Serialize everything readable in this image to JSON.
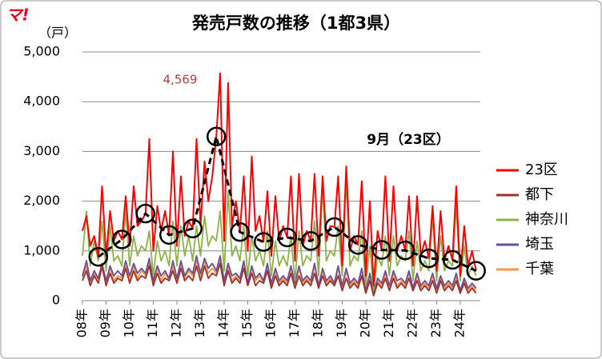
{
  "chart_data": {
    "type": "line",
    "logo": "マ!",
    "title": "発売戸数の推移（1都3県）",
    "y_label": "（戸）",
    "annotation": "4,569",
    "xlim": [
      2008,
      2024.85
    ],
    "ylim": [
      0,
      5000
    ],
    "yticks": [
      0,
      {
        "value": 1000,
        "label": "1,000"
      },
      {
        "value": 2000,
        "label": "2,000"
      },
      {
        "value": 3000,
        "label": "3,000"
      },
      {
        "value": 4000,
        "label": "4,000"
      },
      {
        "value": 5000,
        "label": "5,000"
      }
    ],
    "xticks": [
      {
        "value": 2008,
        "label": "08年"
      },
      {
        "value": 2009,
        "label": "09年"
      },
      {
        "value": 2010,
        "label": "10年"
      },
      {
        "value": 2011,
        "label": "11年"
      },
      {
        "value": 2012,
        "label": "12年"
      },
      {
        "value": 2013,
        "label": "13年"
      },
      {
        "value": 2014,
        "label": "14年"
      },
      {
        "value": 2015,
        "label": "15年"
      },
      {
        "value": 2016,
        "label": "16年"
      },
      {
        "value": 2017,
        "label": "17年"
      },
      {
        "value": 2018,
        "label": "18年"
      },
      {
        "value": 2019,
        "label": "19年"
      },
      {
        "value": 2020,
        "label": "20年"
      },
      {
        "value": 2021,
        "label": "21年"
      },
      {
        "value": 2022,
        "label": "22年"
      },
      {
        "value": 2023,
        "label": "23年"
      },
      {
        "value": 2024,
        "label": "24年"
      }
    ],
    "grid": true,
    "x": [
      2008,
      2008.17,
      2008.33,
      2008.5,
      2008.67,
      2008.83,
      2009,
      2009.17,
      2009.33,
      2009.5,
      2009.67,
      2009.83,
      2010,
      2010.17,
      2010.33,
      2010.5,
      2010.67,
      2010.83,
      2011,
      2011.17,
      2011.33,
      2011.5,
      2011.67,
      2011.83,
      2012,
      2012.17,
      2012.33,
      2012.5,
      2012.67,
      2012.83,
      2013,
      2013.17,
      2013.33,
      2013.5,
      2013.67,
      2013.83,
      2014,
      2014.17,
      2014.33,
      2014.5,
      2014.67,
      2014.83,
      2015,
      2015.17,
      2015.33,
      2015.5,
      2015.67,
      2015.83,
      2016,
      2016.17,
      2016.33,
      2016.5,
      2016.67,
      2016.83,
      2017,
      2017.17,
      2017.33,
      2017.5,
      2017.67,
      2017.83,
      2018,
      2018.17,
      2018.33,
      2018.5,
      2018.67,
      2018.83,
      2019,
      2019.17,
      2019.33,
      2019.5,
      2019.67,
      2019.83,
      2020,
      2020.17,
      2020.33,
      2020.5,
      2020.67,
      2020.83,
      2021,
      2021.17,
      2021.33,
      2021.5,
      2021.67,
      2021.83,
      2022,
      2022.17,
      2022.33,
      2022.5,
      2022.67,
      2022.83,
      2023,
      2023.17,
      2023.33,
      2023.5,
      2023.67,
      2023.83,
      2024,
      2024.17,
      2024.33,
      2024.5,
      2024.67
    ],
    "series": [
      {
        "name": "23区",
        "color": "#ff0000",
        "values": [
          1400,
          1700,
          1100,
          1300,
          880,
          2300,
          900,
          1800,
          1200,
          1400,
          1230,
          2100,
          1100,
          2300,
          1500,
          1600,
          1750,
          3250,
          1000,
          1900,
          1400,
          1800,
          1320,
          3000,
          1100,
          2500,
          1300,
          1600,
          1450,
          3250,
          1500,
          2800,
          2000,
          2500,
          3300,
          4569,
          1200,
          4380,
          1500,
          2000,
          1380,
          2500,
          1000,
          2900,
          1400,
          1700,
          1180,
          2200,
          900,
          2100,
          1200,
          1500,
          1270,
          2500,
          800,
          2550,
          1100,
          1400,
          1200,
          2550,
          900,
          2500,
          1200,
          1500,
          1480,
          2500,
          700,
          2700,
          1000,
          1300,
          1120,
          2400,
          500,
          2000,
          300,
          1400,
          1020,
          2500,
          800,
          2300,
          1000,
          1300,
          1010,
          2100,
          700,
          2100,
          900,
          1200,
          850,
          1900,
          600,
          1800,
          800,
          1100,
          820,
          2300,
          500,
          1500,
          700,
          1000,
          600
        ]
      },
      {
        "name": "都下",
        "color": "#a0302c",
        "values": [
          400,
          600,
          300,
          500,
          350,
          700,
          300,
          550,
          350,
          450,
          400,
          650,
          350,
          600,
          400,
          500,
          450,
          700,
          300,
          550,
          350,
          450,
          400,
          600,
          350,
          650,
          400,
          500,
          400,
          700,
          400,
          700,
          450,
          550,
          500,
          750,
          300,
          600,
          350,
          450,
          350,
          650,
          300,
          550,
          300,
          400,
          350,
          600,
          250,
          500,
          300,
          400,
          300,
          550,
          250,
          500,
          300,
          400,
          300,
          550,
          250,
          500,
          300,
          400,
          300,
          500,
          200,
          450,
          250,
          350,
          250,
          500,
          150,
          400,
          100,
          350,
          250,
          450,
          200,
          450,
          250,
          350,
          250,
          450,
          200,
          400,
          200,
          300,
          200,
          400,
          150,
          400,
          200,
          300,
          200,
          400,
          150,
          350,
          150,
          250,
          150
        ]
      },
      {
        "name": "神奈川",
        "color": "#8db24a",
        "values": [
          900,
          1800,
          700,
          1200,
          800,
          1600,
          600,
          1500,
          800,
          900,
          700,
          1850,
          700,
          1300,
          900,
          1100,
          1000,
          1400,
          500,
          1200,
          800,
          1000,
          700,
          1600,
          700,
          1500,
          900,
          1300,
          800,
          1500,
          900,
          1700,
          1100,
          1300,
          1200,
          1800,
          600,
          2200,
          900,
          1100,
          800,
          1500,
          500,
          1300,
          800,
          1000,
          700,
          1400,
          500,
          1200,
          700,
          900,
          700,
          1300,
          400,
          1400,
          700,
          900,
          800,
          1600,
          500,
          2330,
          800,
          1000,
          900,
          1500,
          500,
          2450,
          700,
          900,
          800,
          1400,
          300,
          1100,
          200,
          900,
          700,
          1300,
          500,
          1300,
          700,
          900,
          800,
          1400,
          400,
          1200,
          600,
          800,
          600,
          1700,
          400,
          1300,
          600,
          800,
          700,
          1900,
          400,
          1100,
          500,
          700,
          500
        ]
      },
      {
        "name": "埼玉",
        "color": "#6a4f9c",
        "values": [
          500,
          800,
          400,
          600,
          450,
          750,
          400,
          700,
          500,
          600,
          500,
          800,
          500,
          750,
          550,
          650,
          550,
          850,
          400,
          700,
          500,
          600,
          450,
          800,
          450,
          800,
          500,
          650,
          550,
          900,
          550,
          850,
          650,
          750,
          600,
          900,
          400,
          750,
          500,
          550,
          450,
          800,
          350,
          700,
          450,
          550,
          400,
          750,
          350,
          650,
          400,
          500,
          400,
          700,
          350,
          700,
          400,
          500,
          400,
          750,
          300,
          650,
          400,
          500,
          350,
          700,
          300,
          650,
          350,
          450,
          350,
          650,
          200,
          550,
          150,
          450,
          350,
          600,
          300,
          600,
          400,
          450,
          350,
          600,
          250,
          550,
          300,
          400,
          300,
          550,
          250,
          500,
          300,
          400,
          300,
          550,
          200,
          450,
          250,
          350,
          250
        ]
      },
      {
        "name": "千葉",
        "color": "#f79646",
        "values": [
          450,
          700,
          350,
          550,
          400,
          650,
          350,
          650,
          400,
          500,
          450,
          700,
          400,
          700,
          450,
          600,
          500,
          750,
          350,
          650,
          400,
          550,
          400,
          700,
          400,
          750,
          450,
          600,
          500,
          800,
          500,
          800,
          550,
          650,
          550,
          850,
          350,
          700,
          400,
          500,
          400,
          750,
          300,
          650,
          400,
          500,
          350,
          700,
          300,
          600,
          350,
          450,
          350,
          650,
          300,
          650,
          350,
          450,
          350,
          700,
          300,
          600,
          350,
          450,
          300,
          650,
          250,
          600,
          300,
          400,
          300,
          600,
          150,
          500,
          100,
          400,
          300,
          550,
          250,
          550,
          300,
          400,
          300,
          550,
          200,
          500,
          250,
          350,
          250,
          500,
          200,
          450,
          250,
          350,
          250,
          500,
          150,
          400,
          200,
          300,
          200
        ]
      }
    ],
    "highlight": {
      "label": "9月（23区）",
      "color": "#000000",
      "x": [
        2008.67,
        2009.67,
        2010.67,
        2011.67,
        2012.67,
        2013.67,
        2014.67,
        2015.67,
        2016.67,
        2017.67,
        2018.67,
        2019.67,
        2020.67,
        2021.67,
        2022.67,
        2023.67,
        2024.67
      ],
      "values": [
        880,
        1230,
        1750,
        1320,
        1450,
        3300,
        1380,
        1180,
        1270,
        1200,
        1480,
        1120,
        1020,
        1010,
        850,
        820,
        600
      ]
    }
  }
}
